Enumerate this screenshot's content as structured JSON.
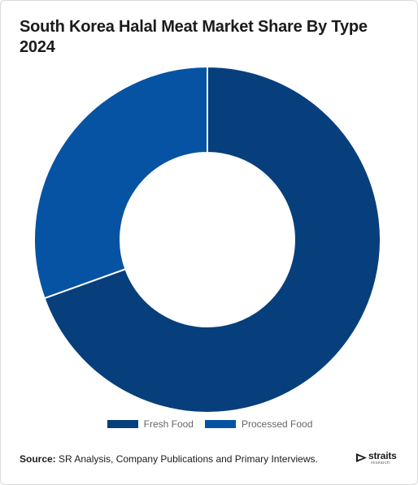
{
  "chart_data": {
    "type": "pie",
    "variant": "donut",
    "title": "South Korea Halal Meat Market Share By Type 2024",
    "categories": [
      "Fresh Food",
      "Processed Food"
    ],
    "values": [
      69.5,
      30.5
    ],
    "unit": "%",
    "colors": [
      "#063f7c",
      "#0753a3"
    ],
    "legend_position": "bottom"
  },
  "legend": [
    {
      "label": "Fresh Food",
      "color": "#063f7c"
    },
    {
      "label": "Processed Food",
      "color": "#0753a3"
    }
  ],
  "source": {
    "key": "Source:",
    "text": " SR Analysis, Company Publications and Primary Interviews."
  },
  "logo": {
    "word": "straits",
    "sub": "research",
    "icon": "straits-logo-icon"
  }
}
